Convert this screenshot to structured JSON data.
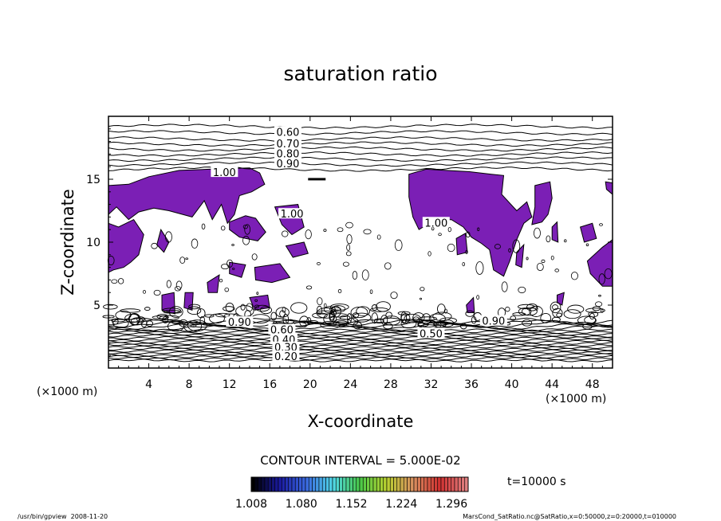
{
  "chart_data": {
    "type": "contour",
    "title": "saturation ratio",
    "xlabel": "X-coordinate",
    "ylabel": "Z-coordinate",
    "x_unit": "(×1000 m)",
    "y_unit": "(×1000 m)",
    "xlim": [
      0,
      50
    ],
    "ylim": [
      0,
      20
    ],
    "x_ticks": [
      4,
      8,
      12,
      16,
      20,
      24,
      28,
      32,
      36,
      40,
      44,
      48
    ],
    "y_ticks": [
      5,
      10,
      15
    ],
    "contour_labels": [
      {
        "text": "0.60",
        "x": 17.8,
        "z": 18.7
      },
      {
        "text": "0.70",
        "x": 17.8,
        "z": 17.8
      },
      {
        "text": "0.80",
        "x": 17.8,
        "z": 17.0
      },
      {
        "text": "0.90",
        "x": 17.8,
        "z": 16.2
      },
      {
        "text": "1.00",
        "x": 11.5,
        "z": 15.5
      },
      {
        "text": "1.00",
        "x": 18.2,
        "z": 12.2
      },
      {
        "text": "1.00",
        "x": 32.5,
        "z": 11.5
      },
      {
        "text": "0.90",
        "x": 13.0,
        "z": 3.6
      },
      {
        "text": "0.60",
        "x": 17.2,
        "z": 3.0
      },
      {
        "text": "0.40",
        "x": 17.4,
        "z": 2.2
      },
      {
        "text": "0.30",
        "x": 17.6,
        "z": 1.6
      },
      {
        "text": "0.20",
        "x": 17.6,
        "z": 0.9
      },
      {
        "text": "0.50",
        "x": 32.0,
        "z": 2.7
      },
      {
        "text": "0.90",
        "x": 38.2,
        "z": 3.7
      }
    ],
    "contour_interval_text": "CONTOUR INTERVAL = 5.000E-02",
    "colorbar": {
      "min": 1.008,
      "max": 1.32,
      "tick_labels": [
        "1.008",
        "1.080",
        "1.152",
        "1.224",
        "1.296"
      ],
      "colors": [
        "#000000",
        "#1a1aa0",
        "#3a6ae0",
        "#50d8e8",
        "#48c848",
        "#b8d030",
        "#d89060",
        "#d03030",
        "#e08080"
      ]
    },
    "time_label": "t=10000 s",
    "fill_color": "#7b1fb5",
    "grid": false,
    "legend": "none"
  },
  "footer": {
    "left": "/usr/bin/gpview  2008-11-20",
    "right": "MarsCond_SatRatio.nc@SatRatio,x=0:50000,z=0:20000,t=010000"
  }
}
